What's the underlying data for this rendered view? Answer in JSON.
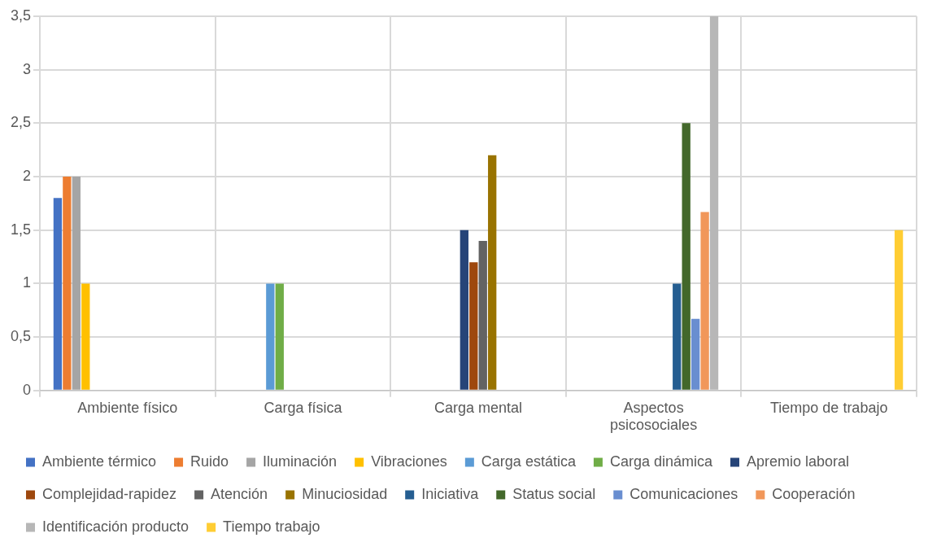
{
  "chart_data": {
    "type": "bar",
    "categories": [
      "Ambiente físico",
      "Carga física",
      "Carga mental",
      "Aspectos psicosociales",
      "Tiempo de trabajo"
    ],
    "series": [
      {
        "name": "Ambiente térmico",
        "color": "#4472c4",
        "values": [
          1.8,
          null,
          null,
          null,
          null
        ]
      },
      {
        "name": "Ruido",
        "color": "#ed7d31",
        "values": [
          2,
          null,
          null,
          null,
          null
        ]
      },
      {
        "name": "Iluminación",
        "color": "#a5a5a5",
        "values": [
          2,
          null,
          null,
          null,
          null
        ]
      },
      {
        "name": "Vibraciones",
        "color": "#ffc000",
        "values": [
          1,
          null,
          null,
          null,
          null
        ]
      },
      {
        "name": "Carga estática",
        "color": "#5b9bd5",
        "values": [
          null,
          1,
          null,
          null,
          null
        ]
      },
      {
        "name": "Carga dinámica",
        "color": "#70ad47",
        "values": [
          null,
          1,
          null,
          null,
          null
        ]
      },
      {
        "name": "Apremio laboral",
        "color": "#264478",
        "values": [
          null,
          null,
          1.5,
          null,
          null
        ]
      },
      {
        "name": "Complejidad-rapidez",
        "color": "#9e480e",
        "values": [
          null,
          null,
          1.2,
          null,
          null
        ]
      },
      {
        "name": "Atención",
        "color": "#636363",
        "values": [
          null,
          null,
          1.4,
          null,
          null
        ]
      },
      {
        "name": "Minuciosidad",
        "color": "#997300",
        "values": [
          null,
          null,
          2.2,
          null,
          null
        ]
      },
      {
        "name": "Iniciativa",
        "color": "#255e91",
        "values": [
          null,
          null,
          null,
          1,
          null
        ]
      },
      {
        "name": "Status social",
        "color": "#43682b",
        "values": [
          null,
          null,
          null,
          2.5,
          null
        ]
      },
      {
        "name": "Comunicaciones",
        "color": "#698ed0",
        "values": [
          null,
          null,
          null,
          0.67,
          null
        ]
      },
      {
        "name": "Cooperación",
        "color": "#f1975a",
        "values": [
          null,
          null,
          null,
          1.67,
          null
        ]
      },
      {
        "name": "Identificación producto",
        "color": "#b7b7b7",
        "values": [
          null,
          null,
          null,
          3.5,
          null
        ]
      },
      {
        "name": "Tiempo trabajo",
        "color": "#ffcd33",
        "values": [
          null,
          null,
          null,
          null,
          1.5
        ]
      }
    ],
    "ylim": [
      0,
      3.5
    ],
    "yticks": [
      0,
      {
        "value": 0.5,
        "label": "0,5"
      },
      1,
      {
        "value": 1.5,
        "label": "1,5"
      },
      2,
      {
        "value": 2.5,
        "label": "2,5"
      },
      3,
      {
        "value": 3.5,
        "label": "3,5"
      }
    ],
    "grid": true,
    "legend": "bottom"
  }
}
